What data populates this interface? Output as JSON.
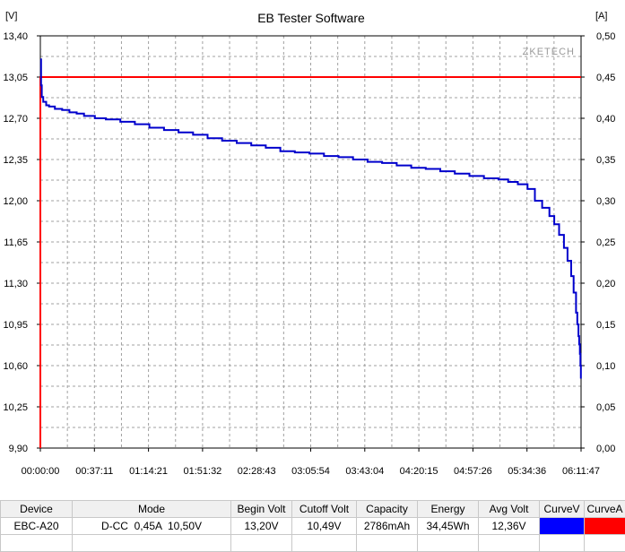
{
  "chart_data": {
    "type": "line",
    "title": "EB Tester Software",
    "watermark": "ZKETECH",
    "y_left_unit": "[V]",
    "y_right_unit": "[A]",
    "y_left_range": [
      9.9,
      13.4
    ],
    "y_right_range": [
      0.0,
      0.5
    ],
    "x_range_seconds": [
      0,
      22307
    ],
    "grid": true,
    "y_left_ticks": [
      "13,40",
      "13,05",
      "12,70",
      "12,35",
      "12,00",
      "11,65",
      "11,30",
      "10,95",
      "10,60",
      "10,25",
      "9,90"
    ],
    "y_right_ticks": [
      "0,50",
      "0,45",
      "0,40",
      "0,35",
      "0,30",
      "0,25",
      "0,20",
      "0,15",
      "0,10",
      "0,05",
      "0,00"
    ],
    "x_ticks": [
      "00:00:00",
      "00:37:11",
      "01:14:21",
      "01:51:32",
      "02:28:43",
      "03:05:54",
      "03:43:04",
      "04:20:15",
      "04:57:26",
      "05:34:36",
      "06:11:47"
    ],
    "series": [
      {
        "color": "#0000cc",
        "axis": "left",
        "x_seconds": [
          0,
          30,
          60,
          120,
          240,
          360,
          600,
          900,
          1200,
          1500,
          1800,
          2250,
          2700,
          3300,
          3900,
          4500,
          5100,
          5700,
          6300,
          6900,
          7500,
          8100,
          8700,
          9300,
          9900,
          10500,
          11100,
          11700,
          12300,
          12900,
          13500,
          14100,
          14700,
          15300,
          15900,
          16500,
          17100,
          17700,
          18300,
          18900,
          19300,
          19700,
          20100,
          20400,
          20700,
          21000,
          21200,
          21400,
          21600,
          21750,
          21900,
          22000,
          22100,
          22150,
          22200,
          22230,
          22260,
          22280,
          22300
        ],
        "values": [
          13.2,
          12.98,
          12.88,
          12.84,
          12.81,
          12.8,
          12.78,
          12.77,
          12.75,
          12.74,
          12.72,
          12.7,
          12.69,
          12.67,
          12.65,
          12.62,
          12.6,
          12.58,
          12.56,
          12.53,
          12.51,
          12.49,
          12.47,
          12.45,
          12.42,
          12.41,
          12.4,
          12.38,
          12.37,
          12.35,
          12.33,
          12.32,
          12.3,
          12.28,
          12.27,
          12.25,
          12.23,
          12.21,
          12.19,
          12.18,
          12.16,
          12.14,
          12.1,
          12.0,
          11.94,
          11.87,
          11.8,
          11.71,
          11.6,
          11.49,
          11.36,
          11.22,
          11.05,
          10.95,
          10.85,
          10.78,
          10.7,
          10.6,
          10.49
        ]
      },
      {
        "color": "#ff0000",
        "axis": "right",
        "x_seconds": [
          0,
          0,
          22307
        ],
        "values": [
          0.0,
          0.45,
          0.45
        ]
      }
    ]
  },
  "table": {
    "headers": [
      "Device",
      "Mode",
      "Begin Volt",
      "Cutoff Volt",
      "Capacity",
      "Energy",
      "Avg Volt",
      "CurveV",
      "CurveA"
    ],
    "row": [
      "EBC-A20",
      "D-CC  0,45A  10,50V",
      "13,20V",
      "10,49V",
      "2786mAh",
      "34,45Wh",
      "12,36V"
    ],
    "curve_colors": [
      "#0000ff",
      "#ff0000"
    ]
  }
}
